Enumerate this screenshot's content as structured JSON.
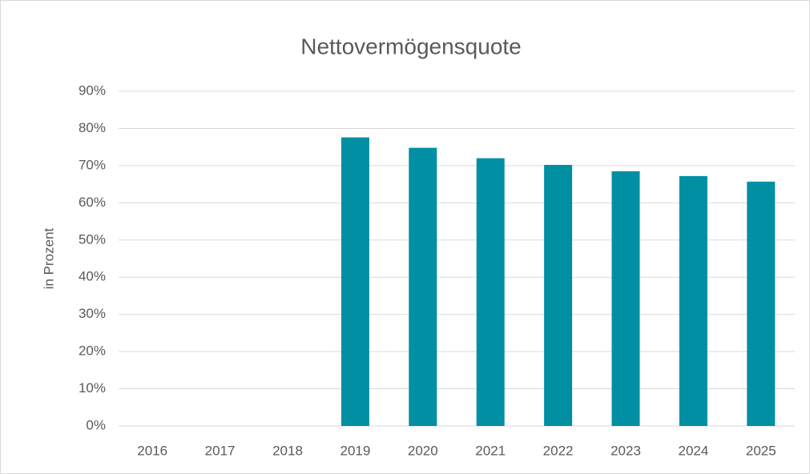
{
  "chart_data": {
    "type": "bar",
    "title": "Nettovermögensquote",
    "y_label": "in Prozent",
    "categories": [
      "2016",
      "2017",
      "2018",
      "2019",
      "2020",
      "2021",
      "2022",
      "2023",
      "2024",
      "2025"
    ],
    "values": [
      null,
      null,
      null,
      77.6,
      74.8,
      72.0,
      70.2,
      68.5,
      67.2,
      65.7
    ],
    "color": "#008fa3",
    "ylim": [
      0,
      90
    ],
    "yticks": [
      {
        "value": 0,
        "label": "0%"
      },
      {
        "value": 10,
        "label": "10%"
      },
      {
        "value": 20,
        "label": "20%"
      },
      {
        "value": 30,
        "label": "30%"
      },
      {
        "value": 40,
        "label": "40%"
      },
      {
        "value": 50,
        "label": "50%"
      },
      {
        "value": 60,
        "label": "60%"
      },
      {
        "value": 70,
        "label": "70%"
      },
      {
        "value": 80,
        "label": "80%"
      },
      {
        "value": 90,
        "label": "90%"
      }
    ],
    "grid": true
  }
}
